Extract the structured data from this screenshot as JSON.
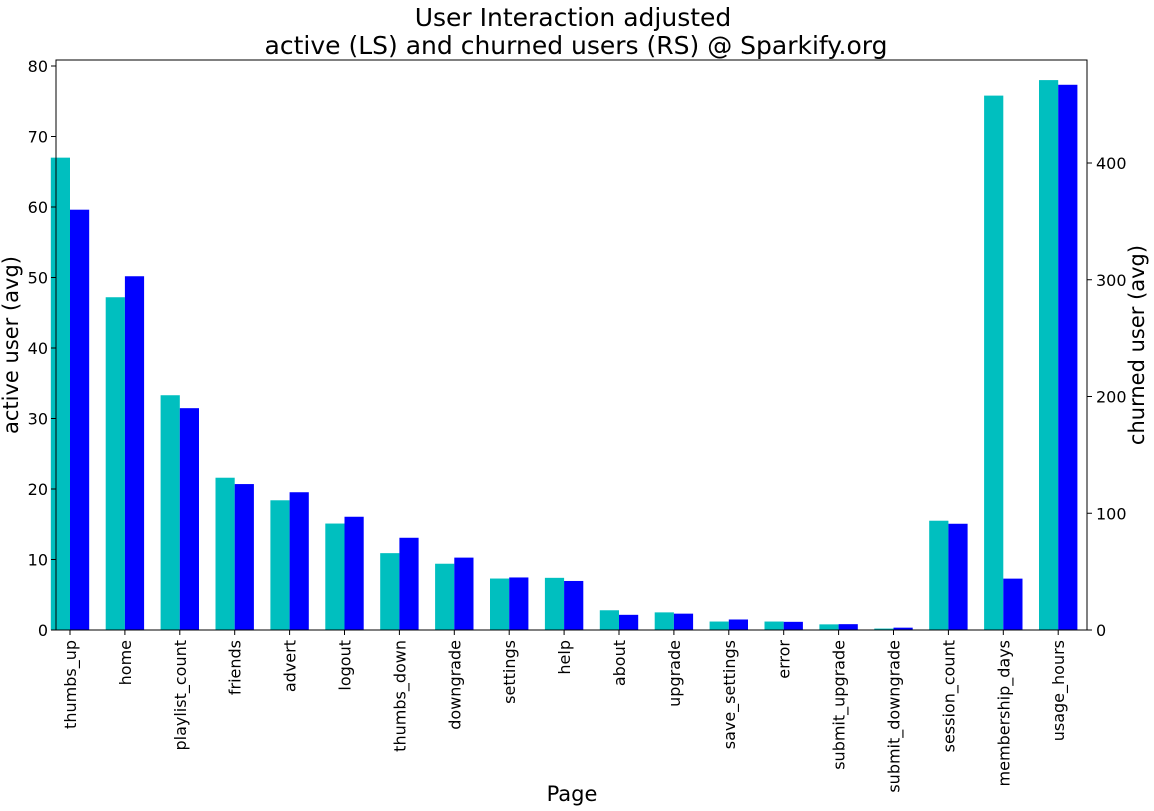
{
  "chart_data": {
    "type": "bar",
    "title_line1": "User Interaction adjusted",
    "title_line2": "active (LS) and churned users (RS) @ Sparkify.org",
    "xlabel": "Page",
    "ylabel_left": "active user (avg)",
    "ylabel_right": "churned user (avg)",
    "categories": [
      "thumbs_up",
      "home",
      "playlist_count",
      "friends",
      "advert",
      "logout",
      "thumbs_down",
      "downgrade",
      "settings",
      "help",
      "about",
      "upgrade",
      "save_settings",
      "error",
      "submit_upgrade",
      "submit_downgrade",
      "session_count",
      "membership_days",
      "usage_hours"
    ],
    "left_axis": {
      "ylim": [
        0,
        82
      ],
      "ticks": [
        0,
        10,
        20,
        30,
        40,
        50,
        60,
        70,
        80
      ]
    },
    "right_axis": {
      "ylim": [
        0,
        490
      ],
      "ticks": [
        0,
        100,
        200,
        300,
        400
      ]
    },
    "series": [
      {
        "axis": "left",
        "color": "#00bfbf",
        "values": [
          67,
          47.2,
          33.3,
          21.6,
          18.4,
          15.1,
          10.9,
          9.4,
          7.3,
          7.4,
          2.8,
          2.5,
          1.2,
          1.2,
          0.8,
          0.2,
          15.5,
          75.8,
          78
        ]
      },
      {
        "axis": "right",
        "color": "#0000ff",
        "values": [
          360,
          303,
          190,
          125,
          118,
          97,
          79,
          62,
          45,
          42,
          13,
          14,
          9,
          7,
          5,
          2,
          91,
          44,
          467
        ]
      }
    ]
  }
}
